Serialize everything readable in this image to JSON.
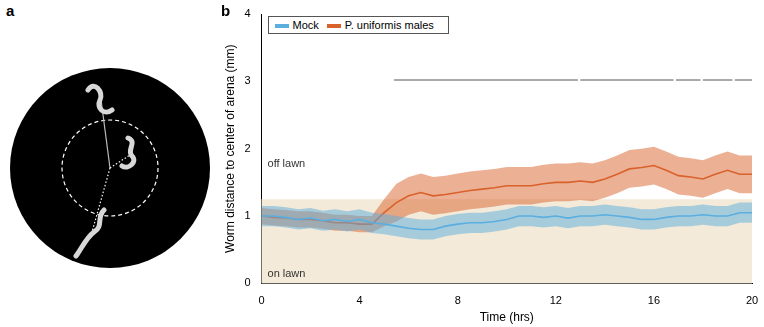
{
  "panel_labels": [
    "a",
    "b"
  ],
  "chart_data": {
    "type": "line",
    "xlabel": "Time (hrs)",
    "ylabel": "Worm distance to center of arena (mm)",
    "xlim": [
      0,
      20
    ],
    "xticks": [
      0,
      4,
      8,
      12,
      16,
      20
    ],
    "ylim": [
      0,
      4
    ],
    "yticks": [
      0,
      1,
      2,
      3,
      4
    ],
    "grid": false,
    "legend": "upper left",
    "region_labels": {
      "above": "off lawn",
      "below": "on lawn"
    },
    "lawn_boundary": 1.25,
    "significance_y": 3.02,
    "significance_intervals": [
      [
        5.4,
        12.9
      ],
      [
        13.0,
        16.8
      ],
      [
        16.9,
        17.9
      ],
      [
        18.0,
        19.2
      ],
      [
        19.3,
        20
      ]
    ],
    "x": [
      0,
      0.5,
      1,
      1.5,
      2,
      2.5,
      3,
      3.5,
      4,
      4.5,
      5,
      5.5,
      6,
      6.5,
      7,
      7.5,
      8,
      8.5,
      9,
      9.5,
      10,
      10.5,
      11,
      11.5,
      12,
      12.5,
      13,
      13.5,
      14,
      14.5,
      15,
      15.5,
      16,
      16.5,
      17,
      17.5,
      18,
      18.5,
      19,
      19.5,
      20
    ],
    "series": [
      {
        "name": "Mock",
        "color": "#5aaee0",
        "values": [
          1.0,
          1.0,
          0.98,
          0.95,
          0.97,
          0.93,
          0.95,
          0.92,
          0.95,
          0.9,
          0.88,
          0.85,
          0.82,
          0.8,
          0.8,
          0.85,
          0.88,
          0.9,
          0.9,
          0.92,
          0.95,
          1.0,
          1.0,
          0.98,
          1.0,
          0.97,
          1.0,
          1.0,
          1.02,
          1.0,
          0.98,
          0.95,
          0.95,
          0.98,
          1.0,
          1.0,
          1.02,
          1.0,
          1.0,
          1.05,
          1.05
        ],
        "lower": [
          0.85,
          0.85,
          0.83,
          0.8,
          0.82,
          0.78,
          0.8,
          0.77,
          0.8,
          0.75,
          0.73,
          0.7,
          0.67,
          0.65,
          0.65,
          0.7,
          0.73,
          0.75,
          0.75,
          0.77,
          0.8,
          0.85,
          0.85,
          0.83,
          0.85,
          0.82,
          0.85,
          0.85,
          0.87,
          0.85,
          0.83,
          0.8,
          0.8,
          0.83,
          0.85,
          0.85,
          0.87,
          0.85,
          0.85,
          0.9,
          0.9
        ],
        "upper": [
          1.15,
          1.15,
          1.13,
          1.1,
          1.12,
          1.08,
          1.1,
          1.07,
          1.1,
          1.05,
          1.03,
          1.0,
          0.97,
          0.95,
          0.95,
          1.0,
          1.03,
          1.05,
          1.05,
          1.07,
          1.1,
          1.15,
          1.15,
          1.13,
          1.15,
          1.12,
          1.15,
          1.15,
          1.17,
          1.15,
          1.13,
          1.1,
          1.1,
          1.13,
          1.15,
          1.15,
          1.17,
          1.15,
          1.15,
          1.2,
          1.2
        ]
      },
      {
        "name": "P. uniformis males",
        "color": "#d9622b",
        "values": [
          1.0,
          0.98,
          0.97,
          0.95,
          0.95,
          0.93,
          0.9,
          0.9,
          0.88,
          0.88,
          1.05,
          1.2,
          1.3,
          1.35,
          1.3,
          1.32,
          1.35,
          1.38,
          1.4,
          1.42,
          1.45,
          1.45,
          1.45,
          1.48,
          1.5,
          1.5,
          1.52,
          1.5,
          1.55,
          1.62,
          1.7,
          1.72,
          1.75,
          1.68,
          1.6,
          1.58,
          1.55,
          1.62,
          1.68,
          1.62,
          1.62
        ],
        "lower": [
          0.88,
          0.86,
          0.85,
          0.83,
          0.83,
          0.81,
          0.78,
          0.78,
          0.76,
          0.76,
          0.85,
          0.92,
          1.02,
          1.07,
          1.02,
          1.04,
          1.07,
          1.1,
          1.12,
          1.14,
          1.17,
          1.17,
          1.17,
          1.2,
          1.22,
          1.22,
          1.24,
          1.22,
          1.27,
          1.34,
          1.42,
          1.44,
          1.47,
          1.4,
          1.32,
          1.3,
          1.27,
          1.34,
          1.4,
          1.34,
          1.34
        ],
        "upper": [
          1.12,
          1.1,
          1.09,
          1.07,
          1.07,
          1.05,
          1.02,
          1.02,
          1.0,
          1.0,
          1.25,
          1.48,
          1.58,
          1.63,
          1.58,
          1.6,
          1.63,
          1.66,
          1.68,
          1.7,
          1.73,
          1.73,
          1.73,
          1.76,
          1.78,
          1.78,
          1.8,
          1.78,
          1.83,
          1.9,
          1.98,
          2.0,
          2.03,
          1.96,
          1.88,
          1.86,
          1.83,
          1.9,
          1.96,
          1.9,
          1.9
        ]
      }
    ]
  }
}
